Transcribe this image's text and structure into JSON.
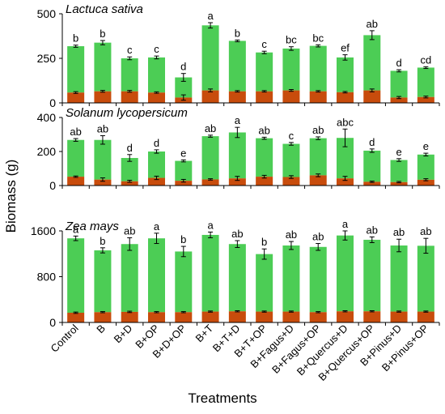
{
  "chart_data": {
    "type": "bar",
    "stacked": true,
    "ylabel": "Biomass (g)",
    "xlabel": "Treatments",
    "categories": [
      "Control",
      "B",
      "B+D",
      "B+OP",
      "B+D+OP",
      "B+T",
      "B+T+D",
      "B+T+OP",
      "B+Fagus+D",
      "B+Fagus+OP",
      "B+Quercus+D",
      "B+Quercus+OP",
      "B+Pinus+D",
      "B+Pinus+OP"
    ],
    "colors": {
      "lower": "#c84c0c",
      "upper": "#4ccd55",
      "error": "#000000"
    },
    "grid": false,
    "panels": [
      {
        "title": "Lactuca sativa",
        "ylim": [
          0,
          500
        ],
        "yticks": [
          0,
          250,
          500
        ],
        "totals": [
          318,
          338,
          250,
          255,
          143,
          435,
          348,
          283,
          305,
          320,
          255,
          380,
          180,
          198
        ],
        "total_err": [
          6,
          12,
          8,
          8,
          22,
          15,
          5,
          7,
          10,
          6,
          15,
          25,
          6,
          5
        ],
        "lower": [
          58,
          65,
          65,
          58,
          30,
          70,
          65,
          65,
          70,
          65,
          60,
          70,
          30,
          33
        ],
        "lower_err": [
          5,
          5,
          5,
          4,
          15,
          8,
          4,
          4,
          5,
          4,
          4,
          8,
          6,
          5
        ],
        "letters": [
          "b",
          "b",
          "c",
          "c",
          "d",
          "a",
          "b",
          "c",
          "bc",
          "bc",
          "ef",
          "ab",
          "d",
          "cd"
        ]
      },
      {
        "title": "Solanum lycopersicum",
        "ylim": [
          0,
          400
        ],
        "yticks": [
          0,
          200,
          400
        ],
        "totals": [
          268,
          268,
          162,
          200,
          145,
          290,
          312,
          278,
          245,
          278,
          280,
          205,
          150,
          182
        ],
        "total_err": [
          8,
          25,
          20,
          10,
          6,
          6,
          30,
          6,
          8,
          8,
          52,
          10,
          8,
          8
        ],
        "lower": [
          52,
          35,
          25,
          45,
          28,
          36,
          42,
          52,
          50,
          60,
          42,
          22,
          20,
          34
        ],
        "lower_err": [
          4,
          10,
          6,
          10,
          8,
          4,
          12,
          8,
          8,
          8,
          12,
          4,
          4,
          6
        ],
        "letters": [
          "ab",
          "ab",
          "d",
          "d",
          "e",
          "ab",
          "a",
          "ab",
          "c",
          "ab",
          "abc",
          "d",
          "e",
          "e"
        ]
      },
      {
        "title": "Zea mays",
        "ylim": [
          0,
          1600
        ],
        "yticks": [
          0,
          800,
          1600
        ],
        "totals": [
          1470,
          1260,
          1370,
          1470,
          1240,
          1530,
          1370,
          1195,
          1345,
          1320,
          1520,
          1445,
          1345,
          1340
        ],
        "total_err": [
          40,
          45,
          110,
          90,
          90,
          50,
          60,
          90,
          70,
          60,
          80,
          50,
          110,
          130
        ],
        "lower": [
          170,
          180,
          185,
          180,
          180,
          190,
          195,
          190,
          190,
          180,
          195,
          195,
          190,
          190
        ],
        "lower_err": [
          12,
          10,
          12,
          10,
          10,
          10,
          10,
          10,
          10,
          10,
          10,
          10,
          10,
          10
        ],
        "letters": [
          "a",
          "b",
          "ab",
          "a",
          "b",
          "a",
          "ab",
          "b",
          "ab",
          "ab",
          "a",
          "ab",
          "ab",
          "ab"
        ]
      }
    ]
  }
}
